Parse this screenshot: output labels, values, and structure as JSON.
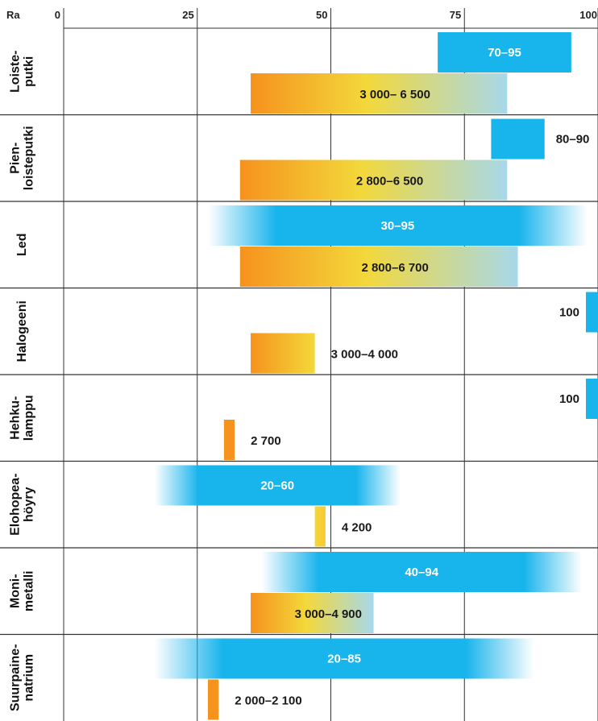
{
  "chart_data": {
    "type": "bar",
    "title": "",
    "xlabel": "Ra",
    "ylabel": "",
    "xlim": [
      0,
      100
    ],
    "xticks": [
      "0",
      "25",
      "50",
      "75",
      "100"
    ],
    "grid": true,
    "series": [
      {
        "name": "",
        "kind": "ra"
      },
      {
        "name": "",
        "kind": "cct"
      }
    ],
    "categories": [
      {
        "label_lines": [
          "Loiste-",
          "putki"
        ],
        "ra": {
          "start": 70,
          "end": 95,
          "label": "70–95",
          "label_position": "inside"
        },
        "cct": {
          "start": 35,
          "end": 83,
          "label": "3 000– 6 500",
          "label_position": "inside",
          "gradient": "orange-yellow-blue"
        }
      },
      {
        "label_lines": [
          "Pien-",
          "loisteputki"
        ],
        "ra": {
          "start": 80,
          "end": 90,
          "label": "80–90",
          "label_position": "outside"
        },
        "cct": {
          "start": 33,
          "end": 83,
          "label": "2 800–6 500",
          "label_position": "inside",
          "gradient": "orange-yellow-blue"
        }
      },
      {
        "label_lines": [
          "Led"
        ],
        "ra": {
          "start": 30,
          "end": 95,
          "label": "30–95",
          "label_position": "inside"
        },
        "cct": {
          "start": 33,
          "end": 85,
          "label": "2 800–6 700",
          "label_position": "inside",
          "gradient": "orange-yellow-blue"
        }
      },
      {
        "label_lines": [
          "Halogeeni"
        ],
        "ra": {
          "start": 100,
          "end": 100,
          "label": "100",
          "label_position": "outside-left"
        },
        "cct": {
          "start": 35,
          "end": 47,
          "label": "3 000–4 000",
          "label_position": "outside",
          "gradient": "orange-yellow"
        }
      },
      {
        "label_lines": [
          "Hehku-",
          "lamppu"
        ],
        "ra": {
          "start": 100,
          "end": 100,
          "label": "100",
          "label_position": "outside-left"
        },
        "cct": {
          "start": 30,
          "end": 32,
          "label": "2 700",
          "label_position": "outside",
          "gradient": "orange"
        }
      },
      {
        "label_lines": [
          "Elohopea-",
          "höyry"
        ],
        "ra": {
          "start": 20,
          "end": 60,
          "label": "20–60",
          "label_position": "inside"
        },
        "cct": {
          "start": 47,
          "end": 49,
          "label": "4 200",
          "label_position": "outside",
          "gradient": "yellow"
        }
      },
      {
        "label_lines": [
          "Moni-",
          "metalli"
        ],
        "ra": {
          "start": 40,
          "end": 94,
          "label": "40–94",
          "label_position": "inside"
        },
        "cct": {
          "start": 35,
          "end": 58,
          "label": "3 000–4 900",
          "label_position": "inside",
          "gradient": "orange-yellow-blue"
        }
      },
      {
        "label_lines": [
          "Suurpaine-",
          "natrium"
        ],
        "ra": {
          "start": 20,
          "end": 85,
          "label": "20–85",
          "label_position": "inside"
        },
        "cct": {
          "start": 27,
          "end": 29,
          "label": "2 000–2 100",
          "label_position": "outside",
          "gradient": "orange"
        }
      }
    ]
  },
  "colors": {
    "blue": "#18b4ec",
    "orange": "#f6921e",
    "yellow": "#f3d83a",
    "cool": "#a7d8ea",
    "grid": "#333333"
  }
}
